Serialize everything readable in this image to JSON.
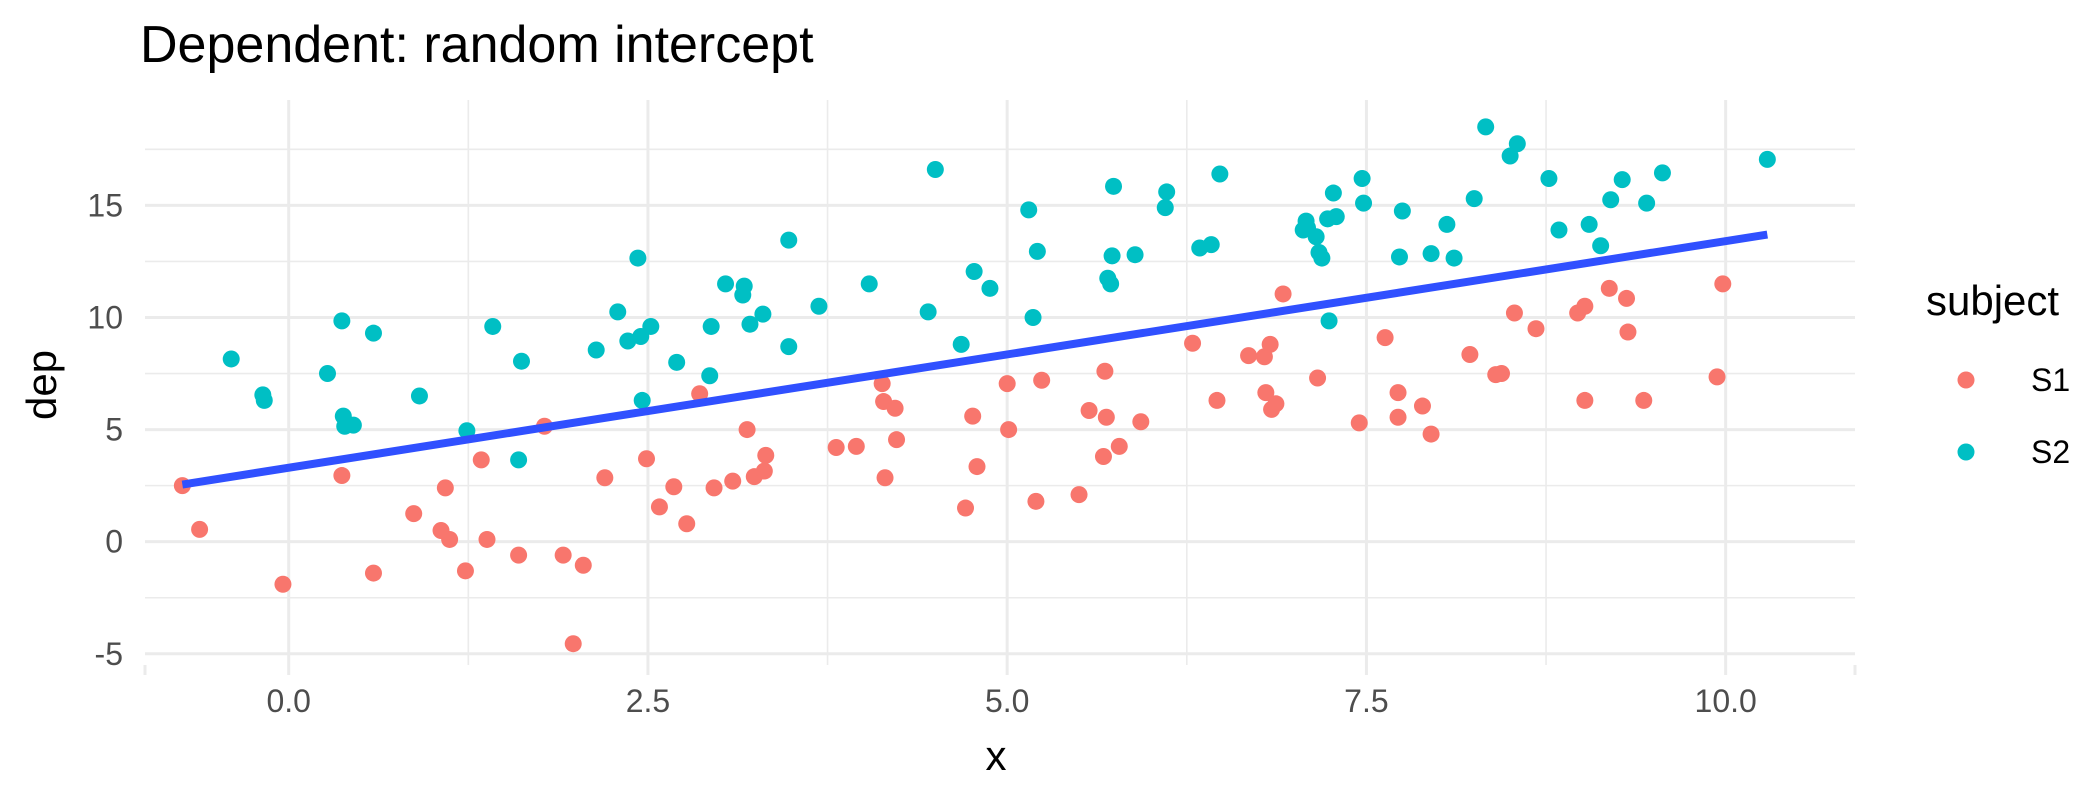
{
  "chart_data": {
    "type": "scatter",
    "title": "Dependent: random intercept",
    "xlabel": "x",
    "ylabel": "dep",
    "xlim": [
      -1.0,
      10.9
    ],
    "ylim": [
      -5.5,
      19.7
    ],
    "x_ticks": [
      0.0,
      2.5,
      5.0,
      7.5,
      10.0
    ],
    "x_tick_labels": [
      "0.0",
      "2.5",
      "5.0",
      "7.5",
      "10.0"
    ],
    "y_ticks": [
      -5,
      0,
      5,
      10,
      15
    ],
    "y_tick_labels": [
      "-5",
      "0",
      "5",
      "10",
      "15"
    ],
    "grid": true,
    "legend": {
      "title": "subject",
      "placement": "right"
    },
    "series": [
      {
        "name": "S1",
        "color": "#F8766D",
        "points": [
          [
            -0.74,
            2.5
          ],
          [
            -0.62,
            0.55
          ],
          [
            -0.04,
            -1.9
          ],
          [
            0.37,
            2.95
          ],
          [
            0.59,
            -1.4
          ],
          [
            0.87,
            1.25
          ],
          [
            1.06,
            0.5
          ],
          [
            1.09,
            2.4
          ],
          [
            1.12,
            0.1
          ],
          [
            1.23,
            -1.3
          ],
          [
            1.34,
            3.65
          ],
          [
            1.38,
            0.1
          ],
          [
            1.6,
            -0.6
          ],
          [
            1.78,
            5.15
          ],
          [
            1.91,
            -0.6
          ],
          [
            1.98,
            -4.55
          ],
          [
            2.05,
            -1.05
          ],
          [
            2.2,
            2.85
          ],
          [
            2.49,
            3.7
          ],
          [
            2.58,
            1.55
          ],
          [
            2.68,
            2.45
          ],
          [
            2.77,
            0.8
          ],
          [
            2.86,
            6.6
          ],
          [
            2.96,
            2.4
          ],
          [
            3.09,
            2.7
          ],
          [
            3.19,
            5.0
          ],
          [
            3.24,
            2.9
          ],
          [
            3.31,
            3.15
          ],
          [
            3.32,
            3.85
          ],
          [
            3.81,
            4.2
          ],
          [
            3.95,
            4.25
          ],
          [
            4.13,
            7.05
          ],
          [
            4.14,
            6.25
          ],
          [
            4.15,
            2.85
          ],
          [
            4.22,
            5.95
          ],
          [
            4.23,
            4.55
          ],
          [
            4.71,
            1.5
          ],
          [
            4.76,
            5.6
          ],
          [
            4.79,
            3.35
          ],
          [
            5.0,
            7.05
          ],
          [
            5.01,
            5.0
          ],
          [
            5.2,
            1.8
          ],
          [
            5.24,
            7.2
          ],
          [
            5.5,
            2.1
          ],
          [
            5.57,
            5.85
          ],
          [
            5.67,
            3.8
          ],
          [
            5.68,
            7.6
          ],
          [
            5.69,
            5.55
          ],
          [
            5.78,
            4.25
          ],
          [
            5.93,
            5.35
          ],
          [
            6.29,
            8.85
          ],
          [
            6.46,
            6.3
          ],
          [
            6.68,
            8.3
          ],
          [
            6.79,
            8.25
          ],
          [
            6.8,
            6.65
          ],
          [
            6.83,
            8.8
          ],
          [
            6.84,
            5.9
          ],
          [
            6.87,
            6.15
          ],
          [
            6.92,
            11.05
          ],
          [
            7.16,
            7.3
          ],
          [
            7.45,
            5.3
          ],
          [
            7.63,
            9.1
          ],
          [
            7.72,
            6.65
          ],
          [
            7.72,
            5.55
          ],
          [
            7.89,
            6.05
          ],
          [
            7.95,
            4.8
          ],
          [
            8.22,
            8.35
          ],
          [
            8.4,
            7.45
          ],
          [
            8.44,
            7.5
          ],
          [
            8.53,
            10.2
          ],
          [
            8.68,
            9.5
          ],
          [
            8.97,
            10.2
          ],
          [
            9.02,
            10.5
          ],
          [
            9.02,
            6.3
          ],
          [
            9.19,
            11.3
          ],
          [
            9.31,
            10.85
          ],
          [
            9.32,
            9.35
          ],
          [
            9.43,
            6.3
          ],
          [
            9.94,
            7.35
          ],
          [
            9.98,
            11.5
          ]
        ]
      },
      {
        "name": "S2",
        "color": "#00BFC4",
        "points": [
          [
            -0.4,
            8.15
          ],
          [
            -0.18,
            6.55
          ],
          [
            -0.17,
            6.3
          ],
          [
            0.27,
            7.5
          ],
          [
            0.37,
            9.85
          ],
          [
            0.38,
            5.6
          ],
          [
            0.39,
            5.15
          ],
          [
            0.45,
            5.2
          ],
          [
            0.59,
            9.3
          ],
          [
            0.91,
            6.5
          ],
          [
            1.24,
            4.95
          ],
          [
            1.42,
            9.6
          ],
          [
            1.6,
            3.65
          ],
          [
            1.62,
            8.05
          ],
          [
            2.14,
            8.55
          ],
          [
            2.29,
            10.25
          ],
          [
            2.36,
            8.95
          ],
          [
            2.43,
            12.65
          ],
          [
            2.45,
            9.15
          ],
          [
            2.46,
            6.3
          ],
          [
            2.52,
            9.6
          ],
          [
            2.7,
            8.0
          ],
          [
            2.93,
            7.4
          ],
          [
            2.94,
            9.6
          ],
          [
            3.04,
            11.5
          ],
          [
            3.16,
            11.0
          ],
          [
            3.17,
            11.4
          ],
          [
            3.21,
            9.7
          ],
          [
            3.3,
            10.15
          ],
          [
            3.48,
            8.7
          ],
          [
            3.48,
            13.45
          ],
          [
            3.69,
            10.5
          ],
          [
            4.04,
            11.5
          ],
          [
            4.45,
            10.25
          ],
          [
            4.5,
            16.6
          ],
          [
            4.68,
            8.8
          ],
          [
            4.77,
            12.05
          ],
          [
            4.88,
            11.3
          ],
          [
            5.15,
            14.8
          ],
          [
            5.18,
            10.0
          ],
          [
            5.21,
            12.95
          ],
          [
            5.7,
            11.75
          ],
          [
            5.72,
            11.5
          ],
          [
            5.73,
            12.75
          ],
          [
            5.74,
            15.85
          ],
          [
            5.89,
            12.8
          ],
          [
            6.1,
            14.9
          ],
          [
            6.11,
            15.6
          ],
          [
            6.34,
            13.1
          ],
          [
            6.42,
            13.25
          ],
          [
            6.48,
            16.4
          ],
          [
            7.06,
            13.9
          ],
          [
            7.08,
            14.3
          ],
          [
            7.09,
            14.0
          ],
          [
            7.15,
            13.6
          ],
          [
            7.17,
            12.9
          ],
          [
            7.19,
            12.65
          ],
          [
            7.23,
            14.4
          ],
          [
            7.24,
            9.85
          ],
          [
            7.27,
            15.55
          ],
          [
            7.29,
            14.5
          ],
          [
            7.47,
            16.2
          ],
          [
            7.48,
            15.1
          ],
          [
            7.73,
            12.7
          ],
          [
            7.75,
            14.75
          ],
          [
            7.95,
            12.85
          ],
          [
            8.06,
            14.15
          ],
          [
            8.11,
            12.65
          ],
          [
            8.25,
            15.3
          ],
          [
            8.33,
            18.5
          ],
          [
            8.5,
            17.2
          ],
          [
            8.55,
            17.75
          ],
          [
            8.77,
            16.2
          ],
          [
            8.84,
            13.9
          ],
          [
            9.05,
            14.15
          ],
          [
            9.13,
            13.2
          ],
          [
            9.2,
            15.25
          ],
          [
            9.28,
            16.15
          ],
          [
            9.45,
            15.1
          ],
          [
            9.56,
            16.45
          ],
          [
            10.29,
            17.05
          ]
        ]
      }
    ],
    "fit_line": {
      "color": "#3050FF",
      "x": [
        -0.74,
        10.29
      ],
      "y": [
        2.55,
        13.7
      ]
    }
  }
}
